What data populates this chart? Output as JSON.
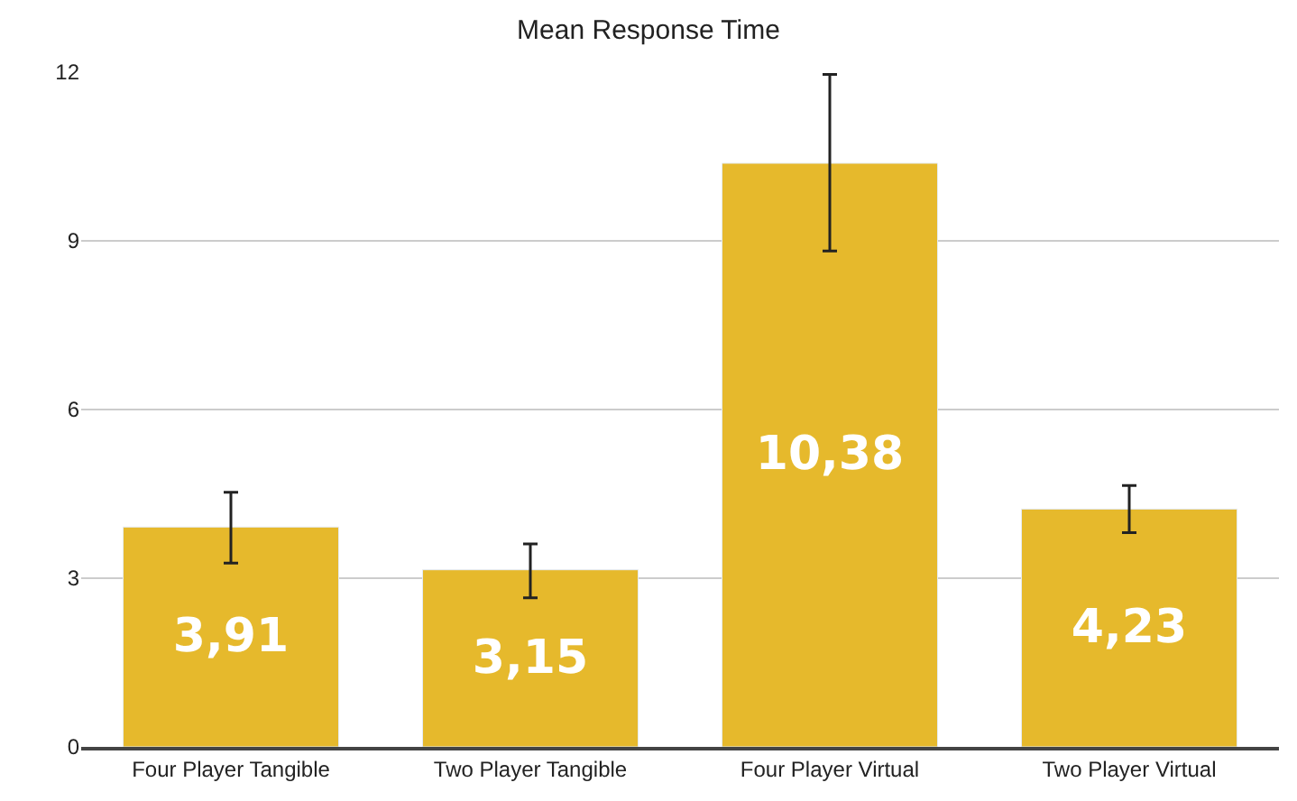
{
  "chart_data": {
    "type": "bar",
    "title": "Mean Response Time",
    "categories": [
      "Four Player Tangible",
      "Two Player Tangible",
      "Four Player Virtual",
      "Two Player Virtual"
    ],
    "values": [
      3.91,
      3.15,
      10.38,
      4.23
    ],
    "value_labels": [
      "3,91",
      "3,15",
      "10,38",
      "4,23"
    ],
    "errors": [
      [
        3.27,
        4.53
      ],
      [
        2.65,
        3.61
      ],
      [
        8.82,
        11.96
      ],
      [
        3.81,
        4.65
      ]
    ],
    "color": "#e6b92c",
    "ylim": [
      0,
      12
    ],
    "yticks": [
      0,
      3,
      6,
      9,
      12
    ],
    "grid": "y"
  }
}
